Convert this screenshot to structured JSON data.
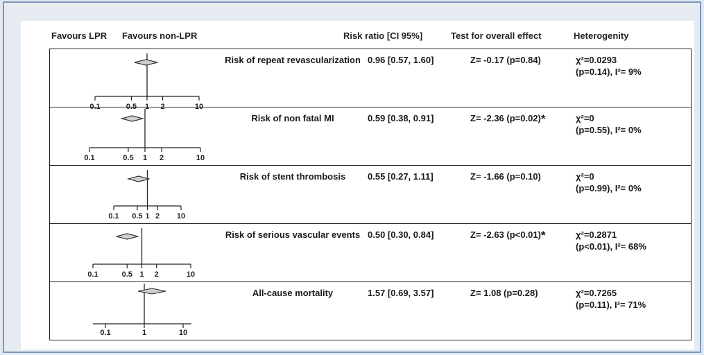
{
  "headers": {
    "favours_lpr": "Favours LPR",
    "favours_non_lpr": "Favours non-LPR",
    "risk_ratio": "Risk ratio [CI 95%]",
    "test": "Test for overall effect",
    "heterogeneity": "Heterogenity"
  },
  "chart_data": {
    "type": "forest",
    "scale": "log",
    "reference_line": 1,
    "rows": [
      {
        "title": "Risk of repeat revascularization",
        "estimate": 0.96,
        "ci_low": 0.57,
        "ci_high": 1.6,
        "rr_text": "0.96 [0.57, 1.60]",
        "test_text": "Z= -0.17 (p=0.84)",
        "significant": false,
        "chi_text": "χ²=0.0293",
        "het_text": "(p=0.14),  I²= 9%",
        "ticks": [
          0.1,
          0.5,
          1,
          2,
          10
        ],
        "tick_labels": [
          "0.1",
          "0.5",
          "1",
          "2",
          "10"
        ]
      },
      {
        "title": "Risk of non fatal MI",
        "estimate": 0.59,
        "ci_low": 0.38,
        "ci_high": 0.91,
        "rr_text": "0.59 [0.38, 0.91]",
        "test_text": "Z= -2.36 (p=0.02)",
        "significant": true,
        "chi_text": "χ²=0",
        "het_text": "(p=0.55),  I²= 0%",
        "ticks": [
          0.1,
          0.5,
          1,
          2,
          10
        ],
        "tick_labels": [
          "0.1",
          "0.5",
          "1",
          "2",
          "10"
        ]
      },
      {
        "title": "Risk of stent thrombosis",
        "estimate": 0.55,
        "ci_low": 0.27,
        "ci_high": 1.11,
        "rr_text": "0.55 [0.27, 1.11]",
        "test_text": "Z= -1.66 (p=0.10)",
        "significant": false,
        "chi_text": "χ²=0",
        "het_text": "(p=0.99),  I²= 0%",
        "ticks": [
          0.1,
          0.5,
          1,
          2,
          10
        ],
        "tick_labels": [
          "0.1",
          "0.5",
          "1",
          "2",
          "10"
        ]
      },
      {
        "title": "Risk of serious vascular events",
        "estimate": 0.5,
        "ci_low": 0.3,
        "ci_high": 0.84,
        "rr_text": "0.50 [0.30, 0.84]",
        "test_text": "Z= -2.63 (p<0.01)",
        "significant": true,
        "chi_text": "χ²=0.2871",
        "het_text": "(p<0.01),  I²= 68%",
        "ticks": [
          0.1,
          0.5,
          1,
          2,
          10
        ],
        "tick_labels": [
          "0.1",
          "0.5",
          "1",
          "2",
          "10"
        ]
      },
      {
        "title": "All-cause mortality",
        "estimate": 1.57,
        "ci_low": 0.69,
        "ci_high": 3.57,
        "rr_text": "1.57 [0.69, 3.57]",
        "test_text": "Z= 1.08 (p=0.28)",
        "significant": false,
        "chi_text": "χ²=0.7265",
        "het_text": "(p=0.11), I²= 71%",
        "ticks": [
          0.1,
          1,
          10
        ],
        "tick_labels": [
          "0.1",
          "1",
          "10"
        ]
      }
    ]
  }
}
